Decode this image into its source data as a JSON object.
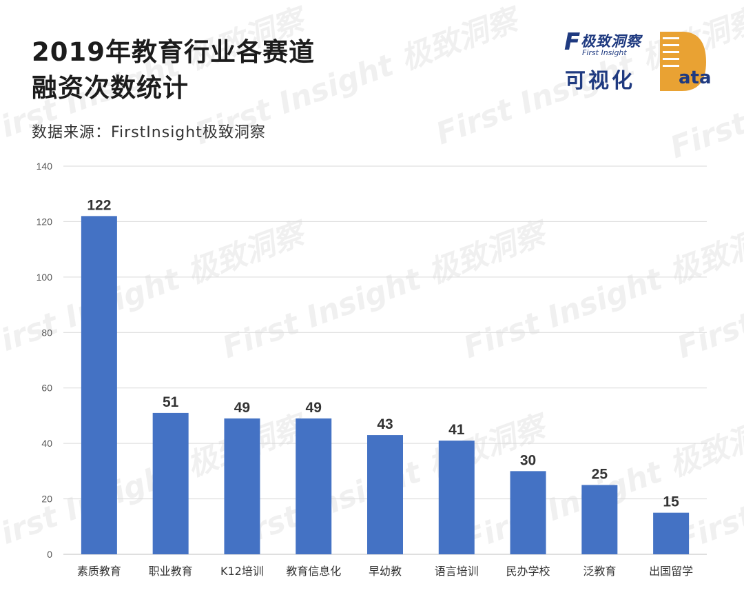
{
  "title_line1": "2019年教育行业各赛道",
  "title_line2": "融资次数统计",
  "source": "数据来源：FirstInsight极致洞察",
  "logo": {
    "brand_letter": "F",
    "brand_name": "极致洞察",
    "brand_en": "First Insight",
    "tagline": "可视化",
    "data_word": "ata"
  },
  "watermark_text": "First Insight 极致洞察",
  "colors": {
    "bar": "#4472c4",
    "brand": "#1f3a80",
    "accent": "#e9a233",
    "grid": "#d9d9d9"
  },
  "chart_data": {
    "type": "bar",
    "title": "2019年教育行业各赛道融资次数统计",
    "categories": [
      "素质教育",
      "职业教育",
      "K12培训",
      "教育信息化",
      "早幼教",
      "语言培训",
      "民办学校",
      "泛教育",
      "出国留学"
    ],
    "values": [
      122,
      51,
      49,
      49,
      43,
      41,
      30,
      25,
      15
    ],
    "ylim": [
      0,
      140
    ],
    "yticks": [
      0,
      20,
      40,
      60,
      80,
      100,
      120,
      140
    ],
    "grid": true,
    "data_labels": true,
    "xlabel": "",
    "ylabel": ""
  }
}
